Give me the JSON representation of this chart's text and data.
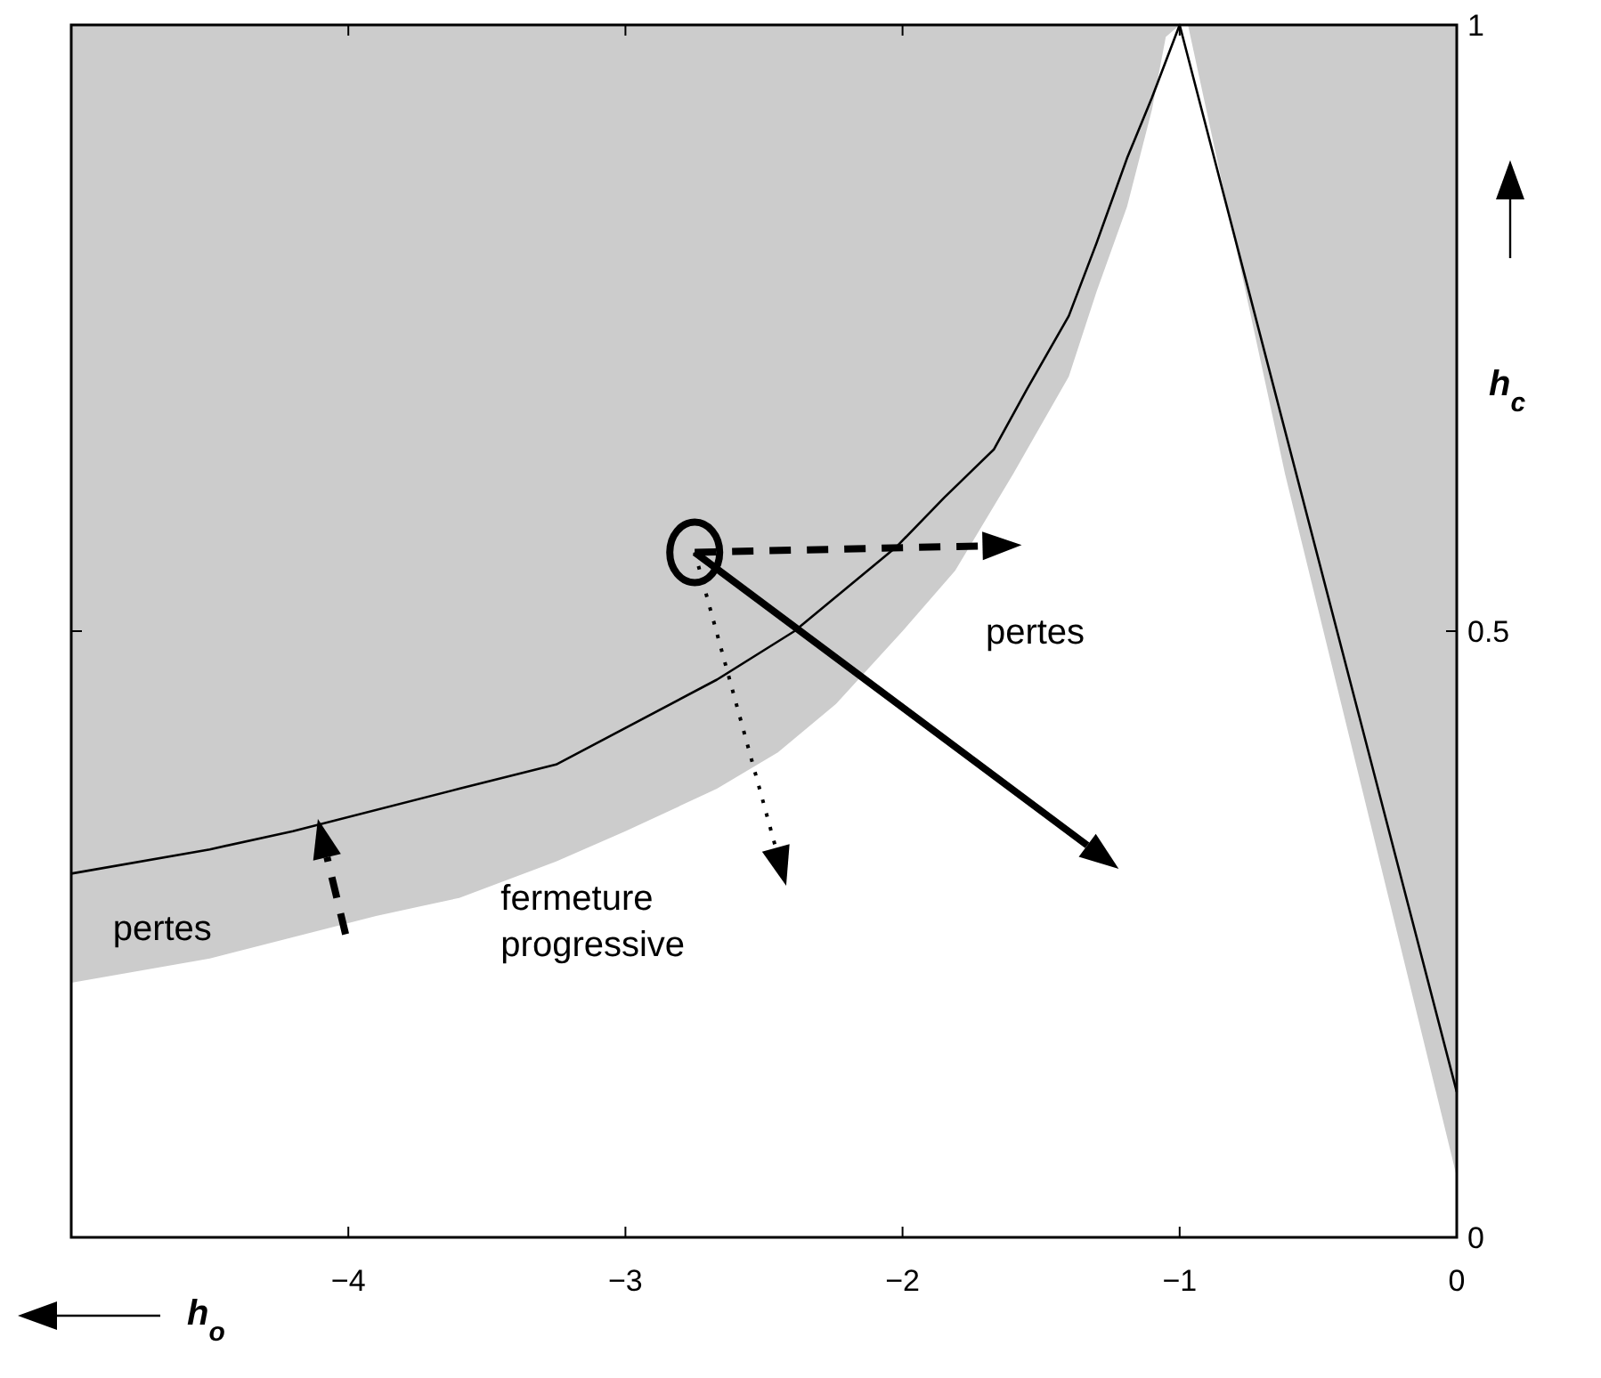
{
  "chart_data": {
    "type": "line",
    "xlabel": "h$_{o}$",
    "ylabel": "h$_{c}$",
    "xlim": [
      -5,
      0
    ],
    "ylim": [
      0,
      1
    ],
    "xticks": [
      -4,
      -3,
      -2,
      -1,
      0
    ],
    "yticks": [
      0,
      0.5,
      1
    ],
    "series": [
      {
        "type": "area",
        "color": "#ffffff",
        "x": [
          -5,
          -4.5,
          -3.9,
          -3.6,
          -3.25,
          -3.0,
          -2.67,
          -2.45,
          -2.24,
          -2.0,
          -1.81,
          -1.6,
          -1.4,
          -1.3,
          -1.19,
          -1.1,
          -1.05,
          -1,
          -0.97,
          -0.62,
          0
        ],
        "values": [
          0.21,
          0.23,
          0.265,
          0.28,
          0.31,
          0.335,
          0.37,
          0.4,
          0.44,
          0.5,
          0.55,
          0.63,
          0.71,
          0.78,
          0.85,
          0.93,
          0.99,
          1,
          1,
          0.63,
          0.05
        ]
      },
      {
        "color": "#000000",
        "x": [
          -5,
          -4.5,
          -4.2,
          -3.6,
          -3.25,
          -2.67,
          -2.39,
          -2.02,
          -1.85,
          -1.67,
          -1.55,
          -1.4,
          -1.3,
          -1.19,
          -1.1,
          -1,
          0
        ],
        "values": [
          0.3,
          0.32,
          0.335,
          0.37,
          0.39,
          0.46,
          0.5,
          0.57,
          0.61,
          0.65,
          0.7,
          0.76,
          0.82,
          0.89,
          0.94,
          1,
          0.12
        ]
      }
    ],
    "annotations": [
      "pertes",
      "pertes",
      "fermeture progressive"
    ]
  }
}
